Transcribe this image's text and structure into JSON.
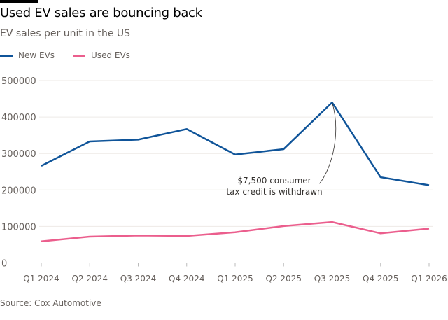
{
  "title": "Used EV sales are bouncing back",
  "subtitle": "EV sales per unit in the US",
  "source": "Source: Cox Automotive",
  "chart_data": {
    "type": "line",
    "categories": [
      "Q1 2024",
      "Q2 2024",
      "Q3 2024",
      "Q4 2024",
      "Q1 2025",
      "Q2 2025",
      "Q3 2025",
      "Q4 2025",
      "Q1 2026"
    ],
    "ylim": [
      0,
      500000
    ],
    "yticks": [
      "0",
      "100000",
      "200000",
      "300000",
      "400000",
      "500000"
    ],
    "grid": true,
    "legend": "top-left",
    "series": [
      {
        "name": "New EVs",
        "color": "#0f5499",
        "values": [
          266000,
          333000,
          338000,
          367000,
          297000,
          312000,
          440000,
          235000,
          213000
        ]
      },
      {
        "name": "Used EVs",
        "color": "#eb5e8d",
        "values": [
          59000,
          72000,
          75000,
          74000,
          84000,
          101000,
          112000,
          81000,
          94000
        ]
      }
    ],
    "annotation": {
      "lines": [
        "$7,500 consumer",
        "tax credit is withdrawn"
      ],
      "category": "Q3 2025",
      "series": "New EVs"
    }
  }
}
